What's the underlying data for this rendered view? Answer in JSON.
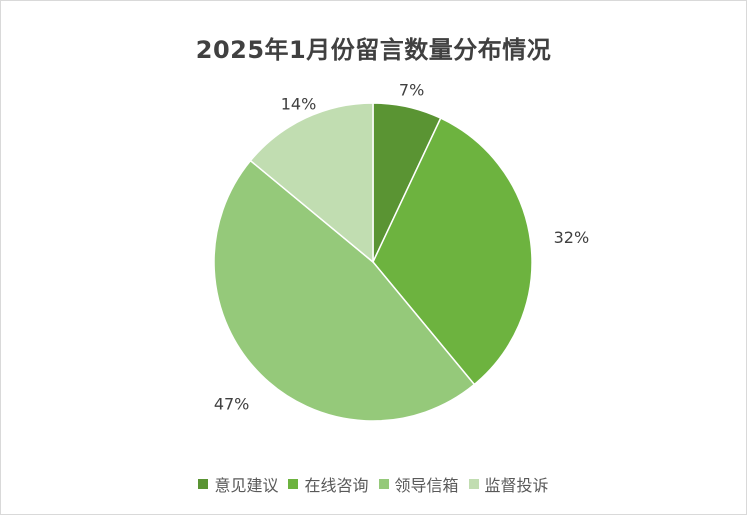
{
  "title": "2025年1月份留言数量分布情况",
  "chart_data": {
    "type": "pie",
    "title": "2025年1月份留言数量分布情况",
    "categories": [
      "意见建议",
      "在线咨询",
      "领导信箱",
      "监督投诉"
    ],
    "values": [
      7,
      32,
      47,
      14
    ],
    "data_labels": [
      "7%",
      "32%",
      "47%",
      "14%"
    ],
    "colors": [
      "#5a9433",
      "#6db33f",
      "#95c97a",
      "#c1ddb1"
    ],
    "legend_position": "bottom",
    "start_angle": "12 o'clock, clockwise"
  }
}
